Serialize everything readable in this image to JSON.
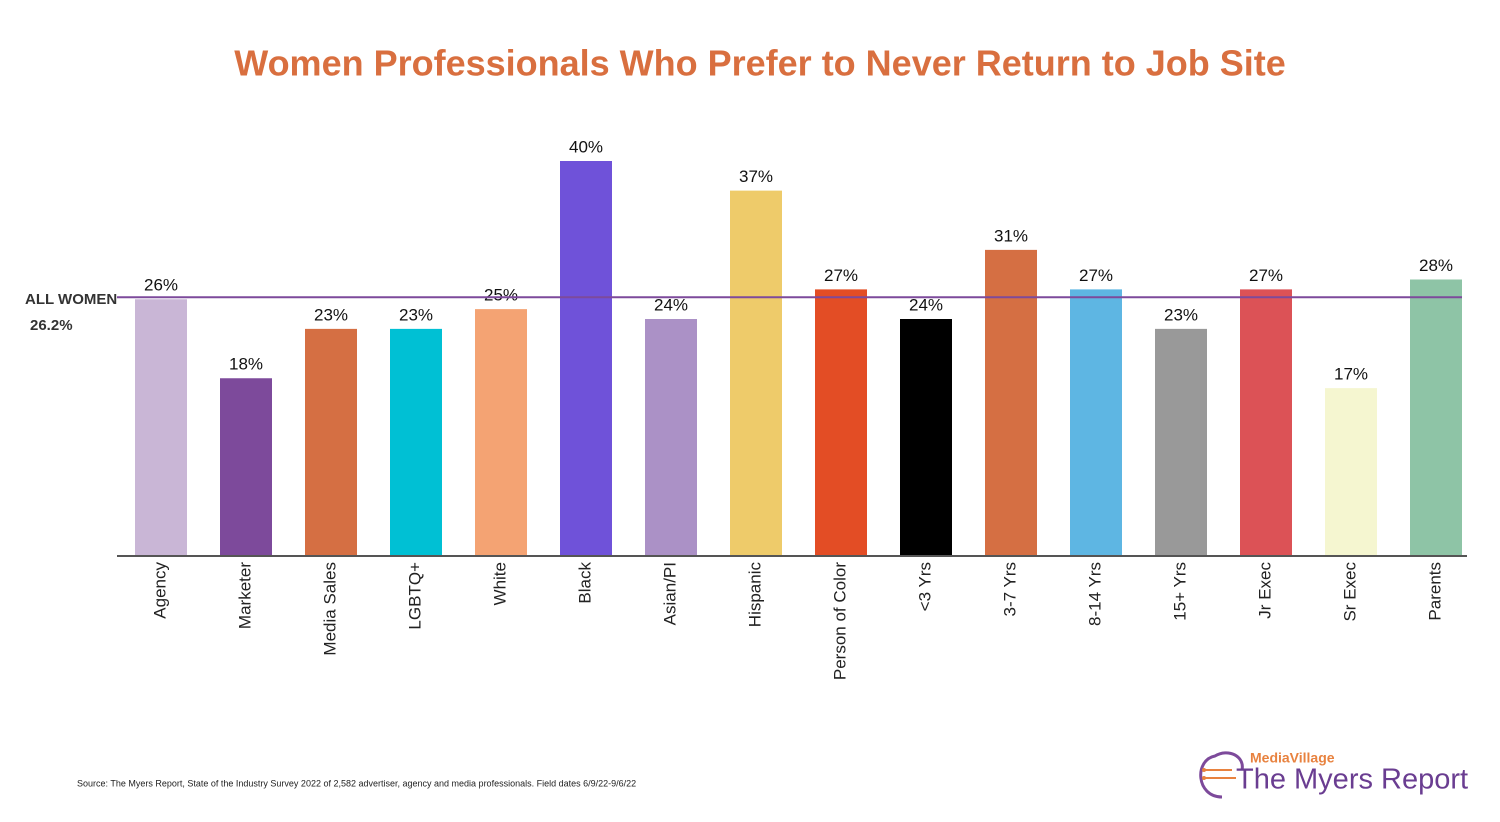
{
  "chart_data": {
    "type": "bar",
    "title": "Women Professionals Who Prefer to Never Return to Job Site",
    "categories": [
      "Agency",
      "Marketer",
      "Media Sales",
      "LGBTQ+",
      "White",
      "Black",
      "Asian/PI",
      "Hispanic",
      "Person of Color",
      "<3 Yrs",
      "3-7 Yrs",
      "8-14 Yrs",
      "15+ Yrs",
      "Jr Exec",
      "Sr Exec",
      "Parents"
    ],
    "values": [
      26,
      18,
      23,
      23,
      25,
      40,
      24,
      37,
      27,
      24,
      31,
      27,
      23,
      27,
      17,
      28
    ],
    "value_labels": [
      "26%",
      "18%",
      "23%",
      "23%",
      "25%",
      "40%",
      "24%",
      "37%",
      "27%",
      "24%",
      "31%",
      "27%",
      "23%",
      "27%",
      "17%",
      "28%"
    ],
    "colors": [
      "#c9b6d6",
      "#7d4a9b",
      "#d56f43",
      "#00c0d4",
      "#f4a373",
      "#6f52d9",
      "#ab91c6",
      "#eecb6a",
      "#e34d25",
      "#000000",
      "#d56f43",
      "#5eb6e3",
      "#999999",
      "#dc5256",
      "#f5f6d0",
      "#8ec4a6"
    ],
    "ylim": [
      0,
      45
    ],
    "reference_line": {
      "name": "ALL WOMEN",
      "value": 26.2,
      "label": "26.2%",
      "color": "#7d4a9b"
    },
    "source": "Source:  The Myers Report, State of the Industry Survey 2022 of 2,582 advertiser, agency and media professionals.  Field dates 6/9/22-9/6/22"
  },
  "logo": {
    "top": "MediaVillage",
    "name": "The Myers Report"
  }
}
